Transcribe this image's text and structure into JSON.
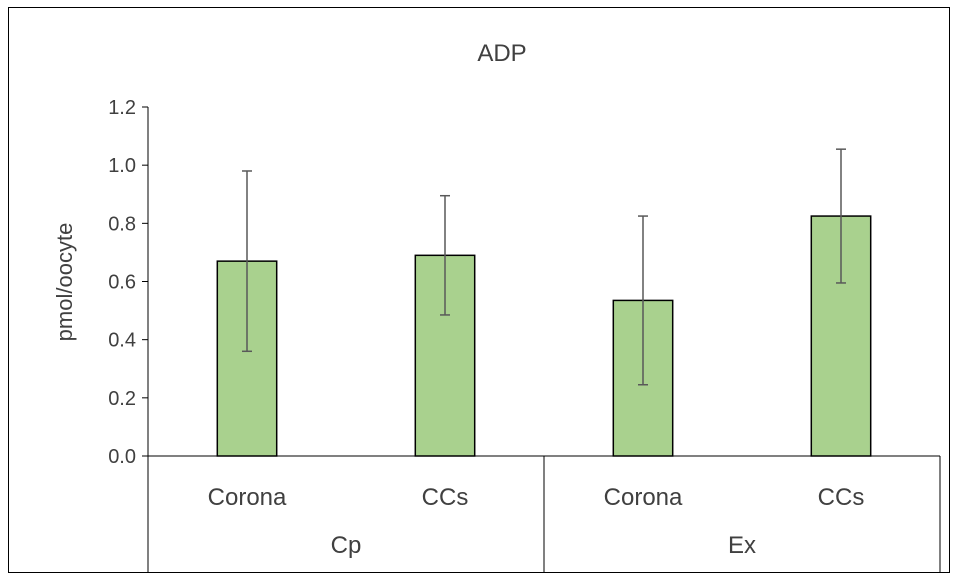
{
  "chart_data": {
    "type": "bar",
    "title": "ADP",
    "ylabel": "pmol/oocyte",
    "xlabel": "",
    "ylim": [
      0,
      1.2
    ],
    "yticks": [
      "0.0",
      "0.2",
      "0.4",
      "0.6",
      "0.8",
      "1.0",
      "1.2"
    ],
    "categories": [
      "Corona",
      "CCs",
      "Corona",
      "CCs"
    ],
    "groups": [
      {
        "label": "Cp",
        "categories": [
          "Corona",
          "CCs"
        ]
      },
      {
        "label": "Ex",
        "categories": [
          "Corona",
          "CCs"
        ]
      }
    ],
    "values": [
      0.67,
      0.69,
      0.535,
      0.825
    ],
    "error": [
      0.31,
      0.205,
      0.29,
      0.23
    ],
    "bar_color": "#a9d18e",
    "bar_edge_color": "#000000",
    "error_color": "#595959",
    "grid": false,
    "legend": "none"
  }
}
